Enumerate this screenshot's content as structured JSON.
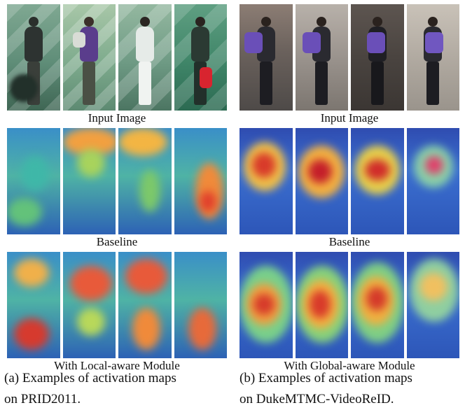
{
  "left_panel": {
    "row_labels": [
      "Input Image",
      "Baseline",
      "With Local-aware Module"
    ],
    "caption_line1": "(a) Examples of activation maps",
    "caption_line2": "on PRID2011."
  },
  "right_panel": {
    "row_labels": [
      "Input Image",
      "Baseline",
      "With Global-aware Module"
    ],
    "caption_line1": "(b) Examples of activation maps",
    "caption_line2": "on DukeMTMC-VideoReID."
  }
}
